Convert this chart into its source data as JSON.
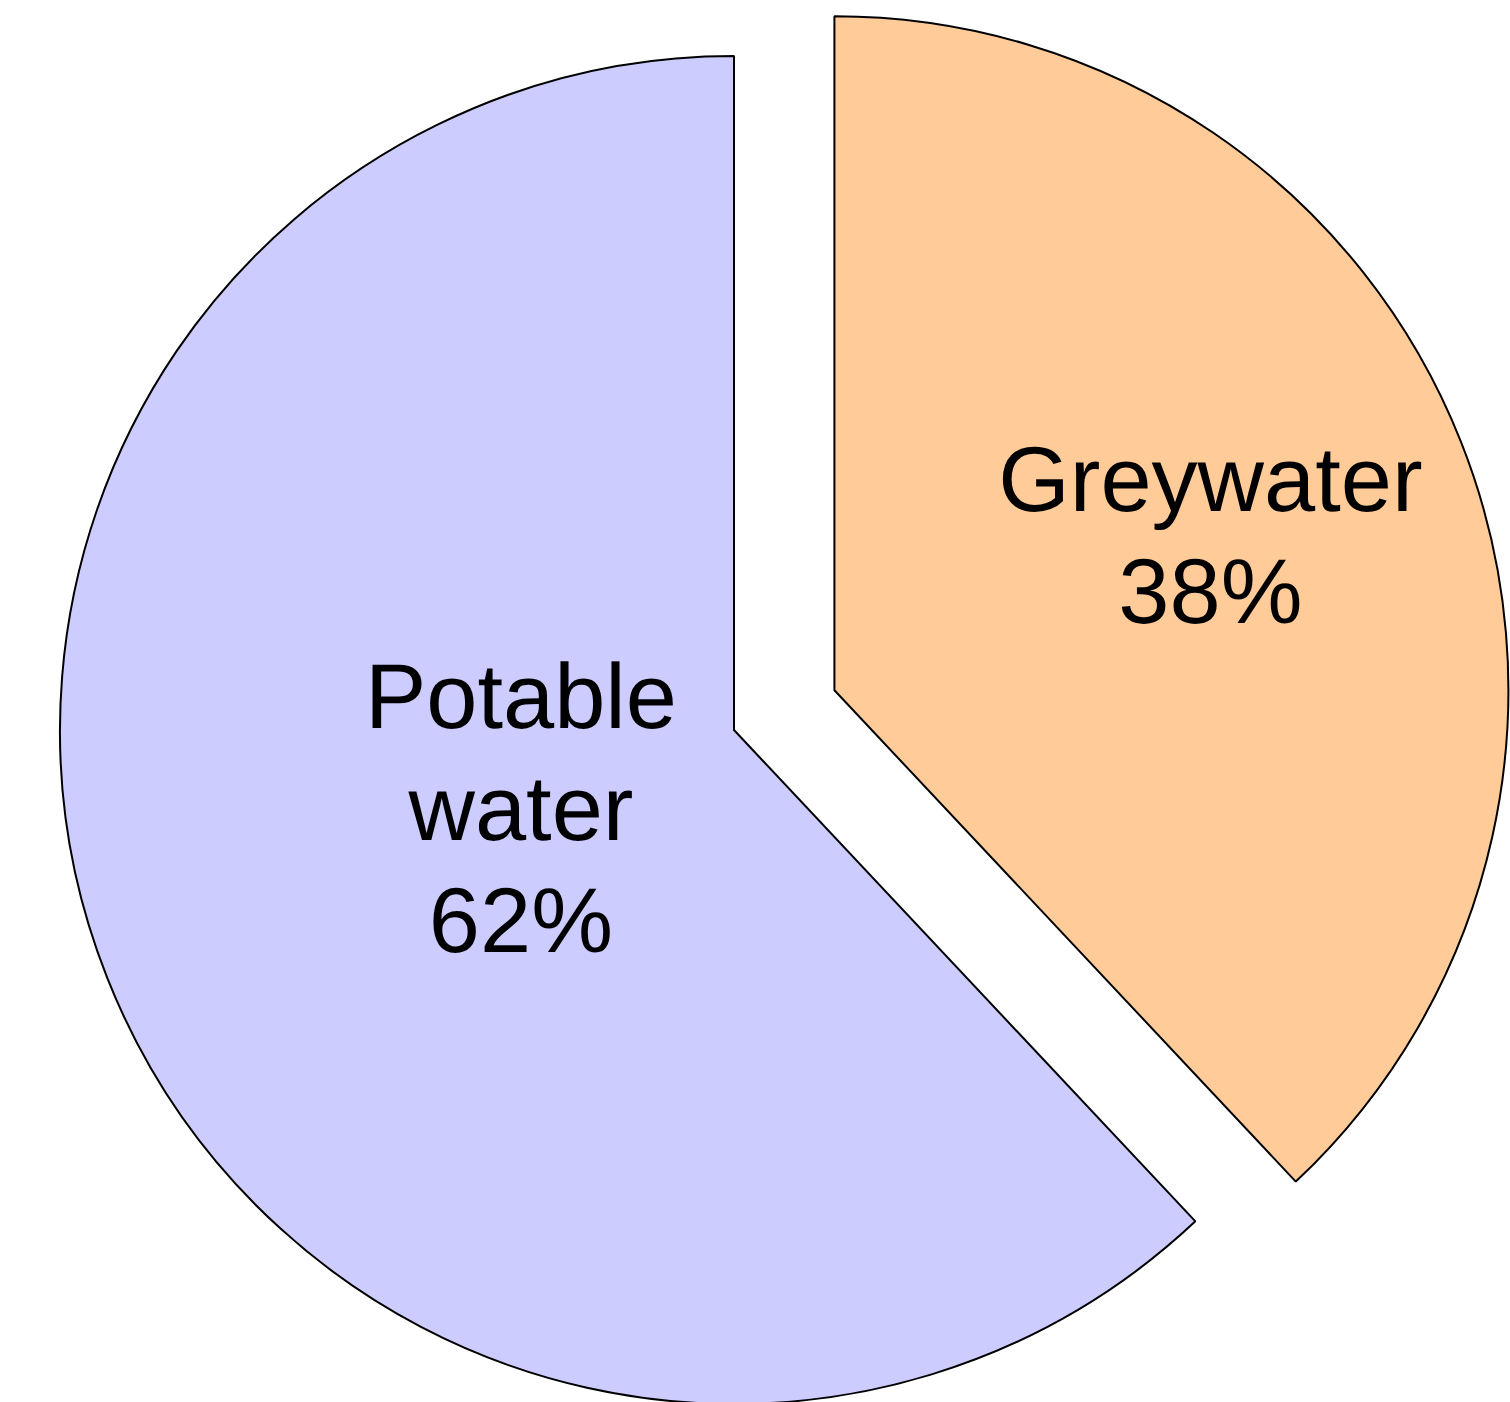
{
  "chart_data": {
    "type": "pie",
    "categories": [
      "Greywater",
      "Potable water"
    ],
    "values": [
      38,
      62
    ],
    "colors": [
      "#ffcc99",
      "#ccccff"
    ],
    "value_labels": [
      "38%",
      "62%"
    ]
  }
}
